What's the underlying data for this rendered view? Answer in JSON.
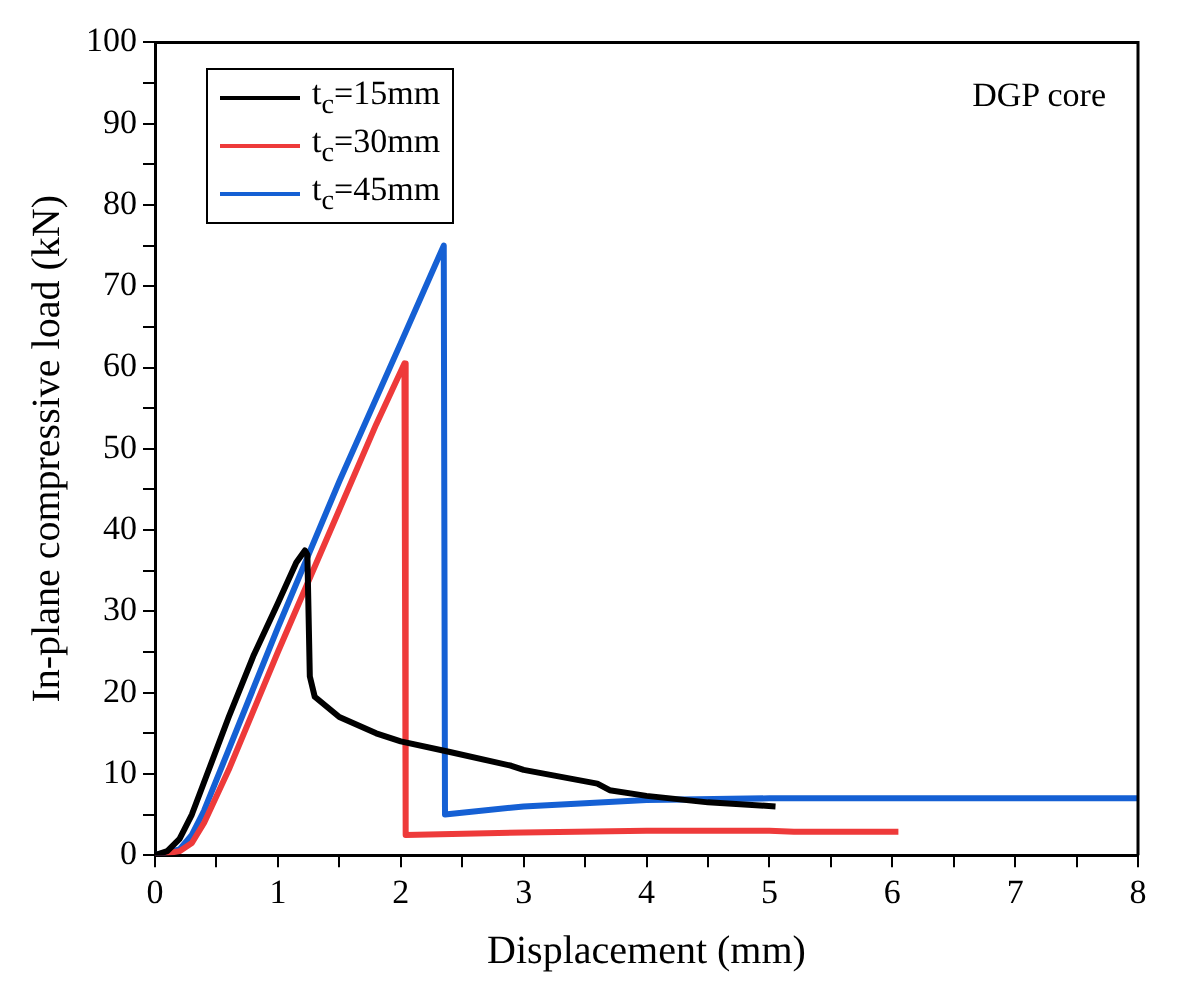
{
  "chart_data": {
    "type": "line",
    "xlabel": "Displacement (mm)",
    "ylabel": "In-plane compressive load (kN)",
    "annotations": [
      "DGP core"
    ],
    "xlim": [
      0,
      8
    ],
    "ylim": [
      0,
      100
    ],
    "xticks": [
      0,
      {
        "value": 0.5,
        "label": null
      },
      1,
      {
        "value": 1.5,
        "label": null
      },
      2,
      {
        "value": 2.5,
        "label": null
      },
      3,
      {
        "value": 3.5,
        "label": null
      },
      4,
      {
        "value": 4.5,
        "label": null
      },
      5,
      {
        "value": 5.5,
        "label": null
      },
      6,
      {
        "value": 6.5,
        "label": null
      },
      7,
      {
        "value": 7.5,
        "label": null
      },
      8
    ],
    "yticks": [
      0,
      {
        "value": 5,
        "label": null
      },
      10,
      {
        "value": 15,
        "label": null
      },
      20,
      {
        "value": 25,
        "label": null
      },
      30,
      {
        "value": 35,
        "label": null
      },
      40,
      {
        "value": 45,
        "label": null
      },
      50,
      {
        "value": 55,
        "label": null
      },
      60,
      {
        "value": 65,
        "label": null
      },
      70,
      {
        "value": 75,
        "label": null
      },
      80,
      {
        "value": 85,
        "label": null
      },
      90,
      {
        "value": 95,
        "label": null
      },
      100
    ],
    "grid": false,
    "legend": "top left",
    "marker": "none",
    "line_style": "solid",
    "series": [
      {
        "name": "t$_{c}$=15mm",
        "color": "#000000",
        "x": [
          0,
          0.1,
          0.2,
          0.3,
          0.4,
          0.6,
          0.8,
          1.0,
          1.15,
          1.22,
          1.24,
          1.26,
          1.3,
          1.5,
          1.8,
          2.0,
          2.4,
          2.9,
          3.0,
          3.6,
          3.7,
          4.0,
          4.5,
          5.05
        ],
        "values": [
          0,
          0.5,
          2,
          5,
          9,
          17,
          24.5,
          31,
          36,
          37.5,
          37,
          22,
          19.5,
          17,
          15,
          14,
          12.7,
          11,
          10.5,
          8.8,
          8,
          7.3,
          6.5,
          6
        ]
      },
      {
        "name": "t$_{c}$=30mm",
        "color": "#ee3a3a",
        "x": [
          0,
          0.2,
          0.3,
          0.4,
          0.6,
          1.0,
          1.5,
          1.8,
          2.03,
          2.04,
          3,
          4,
          5,
          5.2,
          6.05
        ],
        "values": [
          0,
          0.5,
          1.5,
          4,
          10.5,
          25,
          42.5,
          53,
          60.5,
          2.5,
          2.8,
          3,
          3,
          2.9,
          2.9
        ]
      },
      {
        "name": "t$_{c}$=45mm",
        "color": "#1560d4",
        "x": [
          0,
          0.2,
          0.3,
          0.4,
          0.6,
          1.0,
          1.5,
          2.0,
          2.35,
          2.36,
          3,
          4,
          5,
          8
        ],
        "values": [
          0,
          0.7,
          2.5,
          5.5,
          13,
          28,
          46,
          63,
          75,
          5,
          6,
          6.8,
          7,
          7
        ]
      }
    ]
  }
}
